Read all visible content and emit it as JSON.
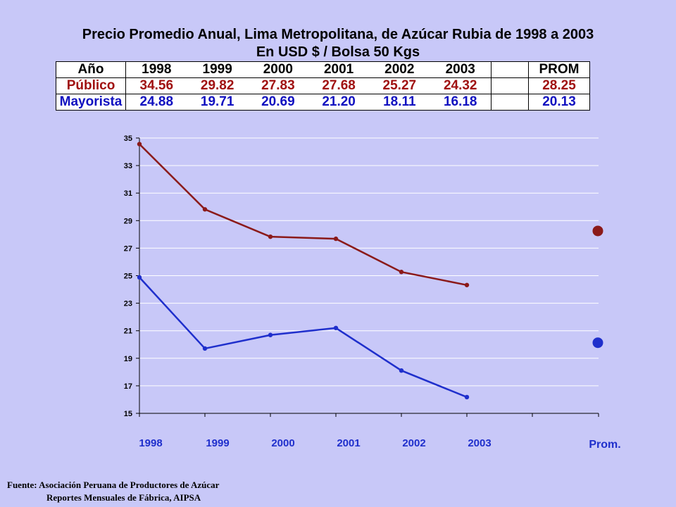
{
  "title_line1": "Precio Promedio Anual, Lima Metropolitana, de Azúcar Rubia de  1998 a  2003",
  "title_line2": "En  USD $  / Bolsa 50 Kgs",
  "table": {
    "header": [
      "Año",
      "1998",
      "1999",
      "2000",
      "2001",
      "2002",
      "2003",
      "PROM"
    ],
    "rows": [
      {
        "label": "Público",
        "values": [
          "34.56",
          "29.82",
          "27.83",
          "27.68",
          "25.27",
          "24.32"
        ],
        "prom": "28.25"
      },
      {
        "label": "Mayorista",
        "values": [
          "24.88",
          "19.71",
          "20.69",
          "21.20",
          "18.11",
          "16.18"
        ],
        "prom": "20.13"
      }
    ]
  },
  "chart_data": {
    "type": "line",
    "categories": [
      "1998",
      "1999",
      "2000",
      "2001",
      "2002",
      "2003"
    ],
    "extra_category": "Prom.",
    "series": [
      {
        "name": "Público",
        "color": "#8b1a1a",
        "values": [
          34.56,
          29.82,
          27.83,
          27.68,
          25.27,
          24.32
        ],
        "prom": 28.25
      },
      {
        "name": "Mayorista",
        "color": "#1f2fcc",
        "values": [
          24.88,
          19.71,
          20.69,
          21.2,
          18.11,
          16.18
        ],
        "prom": 20.13
      }
    ],
    "ylim": [
      15,
      35
    ],
    "yticks": [
      "15",
      "17",
      "19",
      "21",
      "23",
      "25",
      "27",
      "29",
      "31",
      "33",
      "35"
    ],
    "grid": true
  },
  "source": {
    "line1": "Fuente: Asociación Peruana de Productores de Azúcar",
    "line2": "Reportes Mensuales de Fábrica, AIPSA"
  }
}
